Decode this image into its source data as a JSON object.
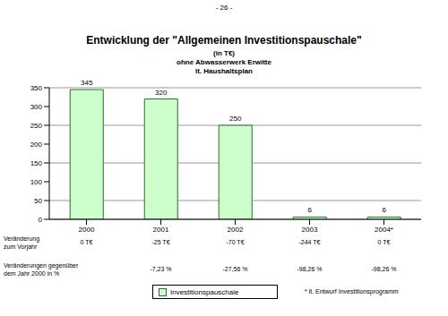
{
  "page_number": "- 26 -",
  "chart_data": {
    "type": "bar",
    "title": "Entwicklung der \"Allgemeinen Investitionspauschale\"",
    "subtitle": [
      "(in T€)",
      "ohne Abwasserwerk Erwitte",
      "lt. Haushaltsplan"
    ],
    "categories": [
      "2000",
      "2001",
      "2002",
      "2003",
      "2004*"
    ],
    "series": [
      {
        "name": "Investitionspauschale",
        "color": "#ccffcc",
        "values": [
          345,
          320,
          250,
          6,
          6
        ]
      }
    ],
    "ylim": [
      0,
      350
    ],
    "yticks": [
      0,
      50,
      100,
      150,
      200,
      250,
      300,
      350
    ],
    "grid": true,
    "data_labels": true,
    "legend": "bottom"
  },
  "table": {
    "rows": [
      {
        "label": [
          "Veränderung",
          "zum Vorjahr"
        ],
        "cells": [
          "0 T€",
          "-25 T€",
          "-70 T€",
          "-244 T€",
          "0 T€"
        ]
      },
      {
        "label": [
          "Veränderungen gegenüber",
          "dem Jahr 2000 in %"
        ],
        "cells": [
          null,
          "-7,23 %",
          "-27,56 %",
          "-98,26 %",
          "-98,26 %"
        ]
      }
    ]
  },
  "footnote": "* lt. Entwurf Investitionsprogramm"
}
